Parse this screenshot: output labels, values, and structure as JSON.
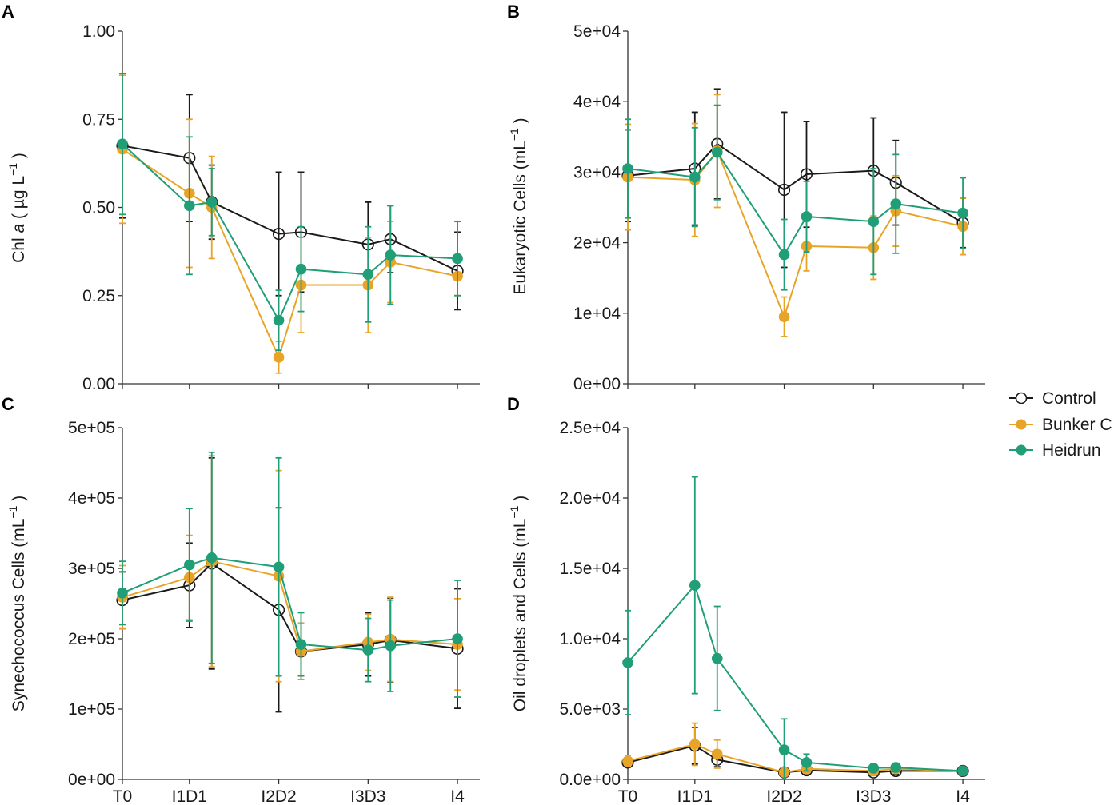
{
  "chart_data": [
    {
      "panel": "A",
      "type": "line",
      "ylabel": "Chl a ( µg L⁻¹ )",
      "ylabel_parts": {
        "pre": "Chl ",
        "italic": "a",
        "post": " ( µg L",
        "sup": "−1",
        "tail": " )"
      },
      "ylim": [
        0,
        1
      ],
      "yticks": [
        0,
        0.25,
        0.5,
        0.75,
        1
      ],
      "ytick_labels": [
        "0.00",
        "0.25",
        "0.50",
        "0.75",
        "1.00"
      ],
      "x_range": [
        0,
        16
      ],
      "xticks": [
        0,
        3,
        7,
        11,
        15
      ],
      "xtick_labels": [],
      "series": [
        {
          "name": "Control",
          "x": [
            0,
            3,
            4,
            7,
            8,
            11,
            12,
            15
          ],
          "y": [
            0.675,
            0.64,
            0.515,
            0.425,
            0.43,
            0.395,
            0.41,
            0.32
          ],
          "err": [
            0.205,
            0.18,
            0.105,
            0.175,
            0.17,
            0.12,
            0.095,
            0.11
          ]
        },
        {
          "name": "Bunker C",
          "x": [
            0,
            3,
            4,
            7,
            8,
            11,
            12,
            15
          ],
          "y": [
            0.665,
            0.54,
            0.5,
            0.075,
            0.28,
            0.28,
            0.345,
            0.305
          ],
          "err": [
            0.21,
            0.21,
            0.145,
            0.045,
            0.135,
            0.135,
            0.115,
            0.055
          ]
        },
        {
          "name": "Heidrun",
          "x": [
            0,
            3,
            4,
            7,
            8,
            11,
            12,
            15
          ],
          "y": [
            0.68,
            0.505,
            0.515,
            0.18,
            0.325,
            0.31,
            0.365,
            0.355
          ],
          "err": [
            0.2,
            0.195,
            0.095,
            0.085,
            0.12,
            0.135,
            0.14,
            0.105
          ]
        }
      ]
    },
    {
      "panel": "B",
      "type": "line",
      "ylabel": "Eukaryotic Cells (mL⁻¹ )",
      "ylabel_parts": {
        "pre": "Eukaryotic Cells (mL",
        "sup": "−1",
        "tail": " )"
      },
      "ylim": [
        0,
        50000
      ],
      "yticks": [
        0,
        10000,
        20000,
        30000,
        40000,
        50000
      ],
      "ytick_labels": [
        "0e+00",
        "1e+04",
        "2e+04",
        "3e+04",
        "4e+04",
        "5e+04"
      ],
      "x_range": [
        0,
        16
      ],
      "xticks": [
        0,
        3,
        7,
        11,
        15
      ],
      "xtick_labels": [],
      "series": [
        {
          "name": "Control",
          "x": [
            0,
            3,
            4,
            7,
            8,
            11,
            12,
            15
          ],
          "y": [
            29500,
            30500,
            34000,
            27500,
            29700,
            30200,
            28500,
            22800
          ],
          "err": [
            6500,
            8000,
            7800,
            11000,
            7500,
            7500,
            6000,
            3500
          ]
        },
        {
          "name": "Bunker C",
          "x": [
            0,
            3,
            4,
            7,
            8,
            11,
            12,
            15
          ],
          "y": [
            29300,
            28900,
            33000,
            9500,
            19500,
            19300,
            24500,
            22300
          ],
          "err": [
            7500,
            8000,
            8000,
            2800,
            3500,
            4500,
            5000,
            4000
          ]
        },
        {
          "name": "Heidrun",
          "x": [
            0,
            3,
            4,
            7,
            8,
            11,
            12,
            15
          ],
          "y": [
            30500,
            29300,
            32800,
            18300,
            23700,
            23000,
            25500,
            24200
          ],
          "err": [
            7000,
            7000,
            6700,
            5000,
            5000,
            7500,
            7000,
            5000
          ]
        }
      ]
    },
    {
      "panel": "C",
      "type": "line",
      "ylabel": "Synechococcus Cells (mL⁻¹ )",
      "ylabel_parts": {
        "pre": "Synechococcus Cells (mL",
        "sup": "−1",
        "tail": " )"
      },
      "ylim": [
        0,
        500000
      ],
      "yticks": [
        0,
        100000,
        200000,
        300000,
        400000,
        500000
      ],
      "ytick_labels": [
        "0e+00",
        "1e+05",
        "2e+05",
        "3e+05",
        "4e+05",
        "5e+05"
      ],
      "x_range": [
        0,
        16
      ],
      "xticks": [
        0,
        3,
        7,
        11,
        15
      ],
      "xtick_labels": [
        "T0",
        "I1D1",
        "I2D2",
        "I3D3",
        "I4"
      ],
      "series": [
        {
          "name": "Control",
          "x": [
            0,
            3,
            4,
            7,
            8,
            11,
            12,
            15
          ],
          "y": [
            255000,
            276000,
            307000,
            241000,
            182000,
            192000,
            198000,
            186000
          ],
          "err": [
            40000,
            60000,
            150000,
            145000,
            40000,
            45000,
            60000,
            85000
          ]
        },
        {
          "name": "Bunker C",
          "x": [
            0,
            3,
            4,
            7,
            8,
            11,
            12,
            15
          ],
          "y": [
            259000,
            287000,
            310000,
            289000,
            182000,
            195000,
            199000,
            192000
          ],
          "err": [
            45000,
            60000,
            150000,
            150000,
            40000,
            40000,
            60000,
            65000
          ]
        },
        {
          "name": "Heidrun",
          "x": [
            0,
            3,
            4,
            7,
            8,
            11,
            12,
            15
          ],
          "y": [
            265000,
            305000,
            315000,
            302000,
            192000,
            184000,
            190000,
            200000
          ],
          "err": [
            45000,
            80000,
            150000,
            155000,
            45000,
            45000,
            65000,
            83000
          ]
        }
      ]
    },
    {
      "panel": "D",
      "type": "line",
      "ylabel": "Oil droplets and Cells (mL⁻¹ )",
      "ylabel_parts": {
        "pre": "Oil droplets and Cells (mL",
        "sup": "−1",
        "tail": " )"
      },
      "ylim": [
        0,
        25000
      ],
      "yticks": [
        0,
        5000,
        10000,
        15000,
        20000,
        25000
      ],
      "ytick_labels": [
        "0.0e+00",
        "5.0e+03",
        "1.0e+04",
        "1.5e+04",
        "2.0e+04",
        "2.5e+04"
      ],
      "x_range": [
        0,
        16
      ],
      "xticks": [
        0,
        3,
        7,
        11,
        15
      ],
      "xtick_labels": [
        "T0",
        "I1D1",
        "I2D2",
        "I3D3",
        "I4"
      ],
      "series": [
        {
          "name": "Control",
          "x": [
            0,
            3,
            4,
            7,
            8,
            11,
            12,
            15
          ],
          "y": [
            1200,
            2400,
            1400,
            500,
            650,
            500,
            600,
            600
          ],
          "err": [
            300,
            1300,
            500,
            250,
            250,
            200,
            250,
            200
          ]
        },
        {
          "name": "Bunker C",
          "x": [
            0,
            3,
            4,
            7,
            8,
            11,
            12,
            15
          ],
          "y": [
            1300,
            2500,
            1800,
            500,
            750,
            600,
            750,
            600
          ],
          "err": [
            400,
            1500,
            1000,
            300,
            300,
            250,
            300,
            200
          ]
        },
        {
          "name": "Heidrun",
          "x": [
            0,
            3,
            4,
            7,
            8,
            11,
            12,
            15
          ],
          "y": [
            8300,
            13800,
            8600,
            2100,
            1200,
            800,
            850,
            600
          ],
          "err": [
            3700,
            7700,
            3700,
            2200,
            600,
            300,
            300,
            250
          ]
        }
      ]
    }
  ],
  "panels": [
    {
      "letter": "A"
    },
    {
      "letter": "B"
    },
    {
      "letter": "C"
    },
    {
      "letter": "D"
    }
  ],
  "legend": {
    "position": "right",
    "entries": [
      {
        "name": "Control",
        "marker": "open-circle"
      },
      {
        "name": "Bunker C",
        "marker": "filled-circle"
      },
      {
        "name": "Heidrun",
        "marker": "filled-circle"
      }
    ]
  },
  "colors": {
    "Control": "#1a1a1a",
    "Bunker C": "#e8a427",
    "Heidrun": "#1f9e77",
    "axis": "#333333"
  }
}
